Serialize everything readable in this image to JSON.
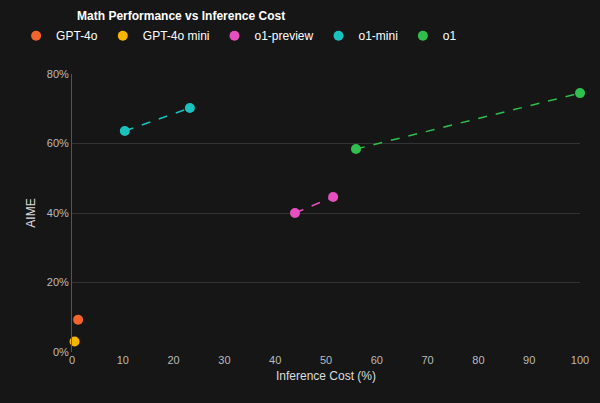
{
  "chart_data": {
    "type": "scatter",
    "title": "Math Performance vs Inference Cost",
    "x_label": "Inference Cost (%)",
    "y_label": "AIME",
    "xlim": [
      0,
      100
    ],
    "xticks": [
      0,
      10,
      20,
      30,
      40,
      50,
      60,
      70,
      80,
      90,
      100
    ],
    "ylim": [
      0,
      80
    ],
    "yticks": [
      {
        "value": 0,
        "label": "0%"
      },
      {
        "value": 20,
        "label": "20%"
      },
      {
        "value": 40,
        "label": "40%"
      },
      {
        "value": 60,
        "label": "60%"
      },
      {
        "value": 80,
        "label": "80%"
      }
    ],
    "grid": "y",
    "legend": "top-left",
    "series": [
      {
        "name": "GPT-4o",
        "color": "#f2642d",
        "marker": "circle",
        "x": [
          1.2
        ],
        "values": [
          9.3
        ]
      },
      {
        "name": "GPT-4o mini",
        "color": "#f7b500",
        "marker": "circle",
        "x": [
          0.5
        ],
        "values": [
          3
        ]
      },
      {
        "name": "o1-preview",
        "color": "#e64fbf",
        "marker": "circle",
        "line_style": "dashed",
        "x": [
          43.9,
          51.4
        ],
        "values": [
          40,
          44.6
        ]
      },
      {
        "name": "o1-mini",
        "color": "#19c2bd",
        "marker": "circle",
        "line_style": "dashed",
        "x": [
          10.4,
          23.2
        ],
        "values": [
          63.6,
          70.2
        ]
      },
      {
        "name": "o1",
        "color": "#2fbf4f",
        "marker": "circle",
        "line_style": "dashed",
        "x": [
          55.9,
          100
        ],
        "values": [
          58.4,
          74.5
        ]
      }
    ]
  }
}
